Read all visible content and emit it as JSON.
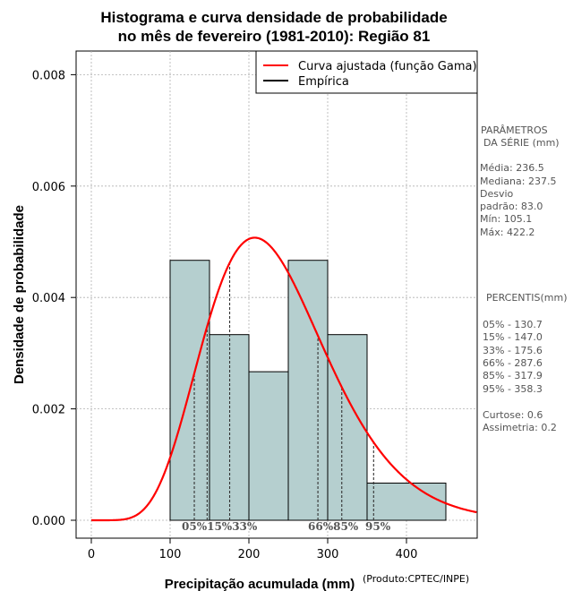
{
  "chart_data": {
    "type": "bar",
    "title_line1": "Histograma e curva densidade de probabilidade",
    "title_line2": "no mês de fevereiro (1981-2010): Região 81",
    "xlabel": "Precipitação acumulada (mm)",
    "ylabel": "Densidade de probabilidade",
    "credit": "(Produto:CPTEC/INPE)",
    "xlim": [
      -15,
      490
    ],
    "ylim": [
      -0.0003,
      0.0084
    ],
    "x_ticks": [
      0,
      100,
      200,
      300,
      400
    ],
    "x_tick_labels": [
      "0",
      "100",
      "200",
      "300",
      "400"
    ],
    "y_ticks": [
      0.0,
      0.002,
      0.004,
      0.006,
      0.008
    ],
    "y_tick_labels": [
      "0.000",
      "0.002",
      "0.004",
      "0.006",
      "0.008"
    ],
    "grid": true,
    "bins": [
      {
        "from": 100,
        "to": 150,
        "density": 0.004667
      },
      {
        "from": 150,
        "to": 200,
        "density": 0.003333
      },
      {
        "from": 200,
        "to": 250,
        "density": 0.002667
      },
      {
        "from": 250,
        "to": 300,
        "density": 0.004667
      },
      {
        "from": 300,
        "to": 350,
        "density": 0.003333
      },
      {
        "from": 350,
        "to": 450,
        "density": 0.000667
      }
    ],
    "bar_color": "#b5cfcf",
    "gamma_curve": {
      "name": "Curva ajustada (função Gama)",
      "color": "#ff0000",
      "mean": 236.5,
      "sd": 83.0
    },
    "empirical": {
      "name": "Empírica",
      "color": "#000000"
    },
    "legend_position": "top-right",
    "percentiles": [
      {
        "label": "05%",
        "value": 130.7
      },
      {
        "label": "15%",
        "value": 147.0
      },
      {
        "label": "33%",
        "value": 175.6
      },
      {
        "label": "66%",
        "value": 287.6
      },
      {
        "label": "85%",
        "value": 317.9
      },
      {
        "label": "95%",
        "value": 358.3
      }
    ],
    "percentile_labels_text": {
      "left": "05%15%33%",
      "middle": "66%85%",
      "right": "95%"
    }
  },
  "side_panel": {
    "params_title_1": "PARÂMETROS",
    "params_title_2": "DA SÉRIE (mm)",
    "media": "Média:  236.5",
    "mediana": "Mediana:  237.5",
    "desvio_1": "Desvio",
    "desvio_2": "padrão:  83.0",
    "min": "Mín:  105.1",
    "max": "Máx:  422.2",
    "percentis_title": "PERCENTIS(mm)",
    "p05": "05% -   130.7",
    "p15": "15% -   147.0",
    "p33": "33% -   175.6",
    "p66": "66% -   287.6",
    "p85": "85% -   317.9",
    "p95": "95% -   358.3",
    "curtose": "Curtose:  0.6",
    "assimetria": "Assimetria:  0.2"
  }
}
